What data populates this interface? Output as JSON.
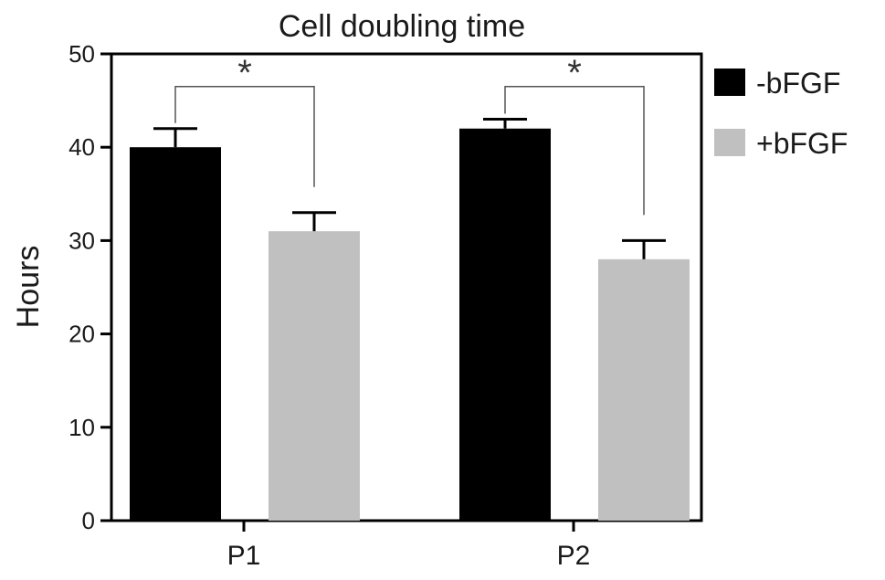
{
  "chart_data": {
    "type": "bar",
    "title": "Cell doubling time",
    "xlabel": "",
    "ylabel": "Hours",
    "ylim": [
      0,
      50
    ],
    "yticks": [
      0,
      10,
      20,
      30,
      40,
      50
    ],
    "categories": [
      "P1",
      "P2"
    ],
    "series": [
      {
        "name": "-bFGF",
        "color": "#000000",
        "values": [
          40,
          42
        ],
        "errors": [
          2,
          1
        ]
      },
      {
        "name": "+bFGF",
        "color": "#c0c0c0",
        "values": [
          31,
          28
        ],
        "errors": [
          2,
          2
        ]
      }
    ],
    "error_bars": "upper",
    "significance": [
      {
        "category": "P1",
        "label": "*"
      },
      {
        "category": "P2",
        "label": "*"
      }
    ],
    "legend_position": "right",
    "grid": false
  }
}
